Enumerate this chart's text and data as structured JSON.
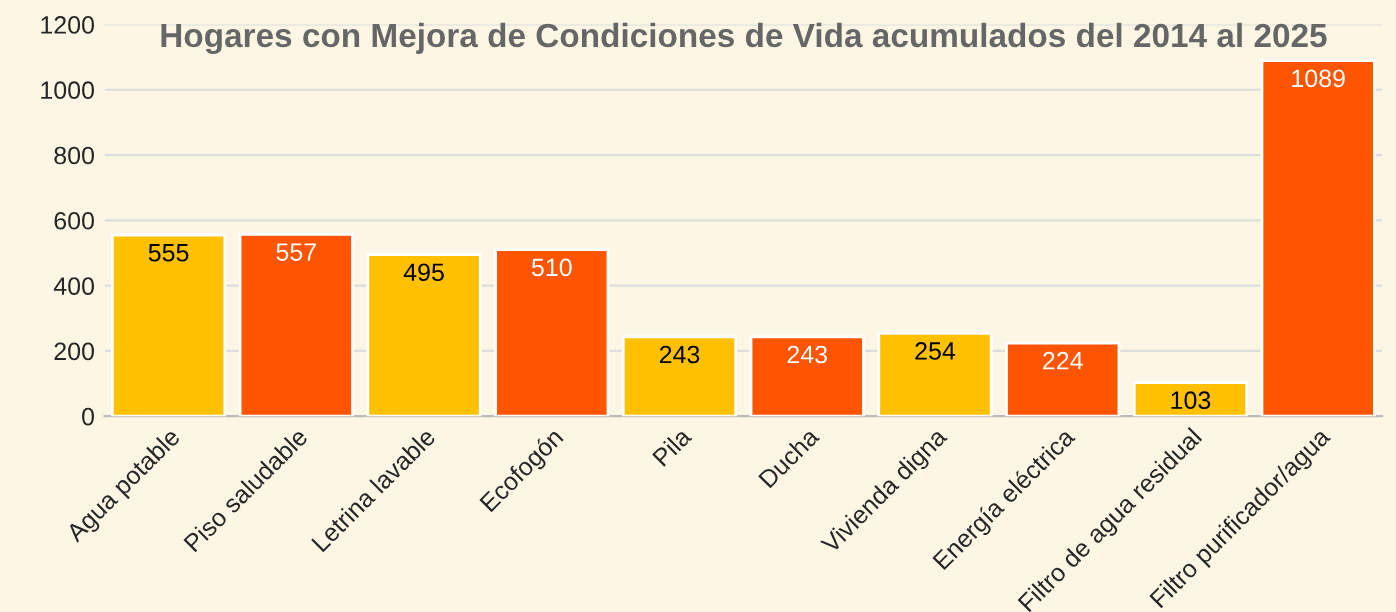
{
  "chart_data": {
    "type": "bar",
    "title": "Hogares con Mejora de Condiciones de Vida acumulados del 2014 al 2025",
    "categories": [
      "Agua potable",
      "Piso saludable",
      "Letrina lavable",
      "Ecofogón",
      "Pila",
      "Ducha",
      "Vivienda digna",
      "Energía eléctrica",
      "Filtro de agua residual",
      "Filtro purificador/agua"
    ],
    "values": [
      555,
      557,
      495,
      510,
      243,
      243,
      254,
      224,
      103,
      1089
    ],
    "colors": [
      "#ffc000",
      "#ff5500",
      "#ffc000",
      "#ff5500",
      "#ffc000",
      "#ff5500",
      "#ffc000",
      "#ff5500",
      "#ffc000",
      "#ff5500"
    ],
    "ylim": [
      0,
      1200
    ],
    "yticks": [
      0,
      200,
      400,
      600,
      800,
      1000,
      1200
    ],
    "grid": "y",
    "data_labels": true
  }
}
